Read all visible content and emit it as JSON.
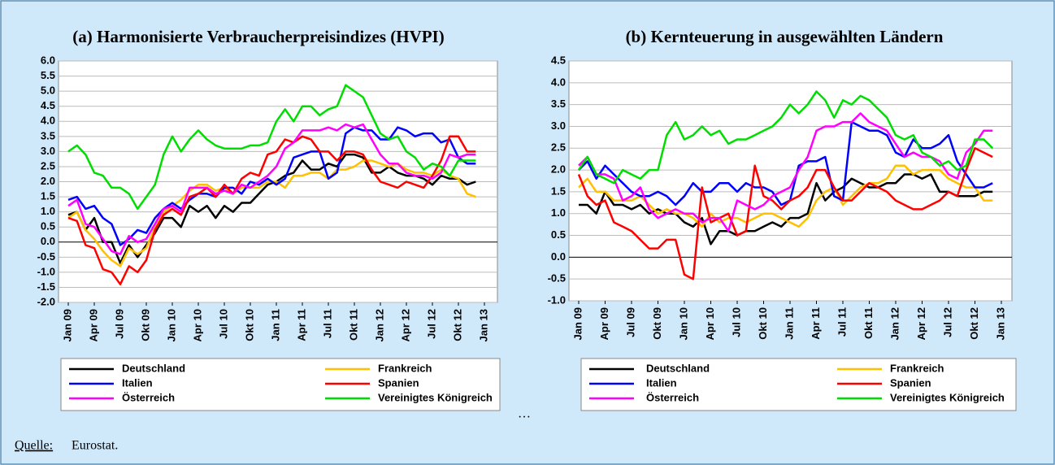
{
  "chart_data": [
    {
      "type": "line",
      "title": "(a) Harmonisierte Verbraucherpreisindizes (HVPI)",
      "categories": [
        "Jan 09",
        null,
        null,
        "Apr 09",
        null,
        null,
        "Jul 09",
        null,
        null,
        "Okt 09",
        null,
        null,
        "Jan 10",
        null,
        null,
        "Apr 10",
        null,
        null,
        "Jul 10",
        null,
        null,
        "Okt 10",
        null,
        null,
        "Jan 11",
        null,
        null,
        "Apr 11",
        null,
        null,
        "Jul 11",
        null,
        null,
        "Okt 11",
        null,
        null,
        "Jan 12",
        null,
        null,
        "Apr 12",
        null,
        null,
        "Jul 12",
        null,
        null,
        "Okt 12",
        null,
        null,
        "Jan 13"
      ],
      "ylim": [
        -2,
        6
      ],
      "yticks": [
        {
          "value": 6,
          "label": "6.0"
        },
        5.5,
        {
          "value": 5,
          "label": "5.0"
        },
        4.5,
        {
          "value": 4,
          "label": "4.0"
        },
        3.5,
        {
          "value": 3,
          "label": "3.0"
        },
        2.5,
        {
          "value": 2,
          "label": "2.0"
        },
        1.5,
        {
          "value": 1,
          "label": "1.0"
        },
        0.5,
        {
          "value": 0,
          "label": "0.0"
        },
        -0.5,
        {
          "value": -1,
          "label": "-1.0"
        },
        -1.5,
        {
          "value": -2,
          "label": "-2.0"
        }
      ],
      "grid": true,
      "series": [
        {
          "name": "Deutschland",
          "color": "#000000",
          "values": [
            0.9,
            1.0,
            0.4,
            0.8,
            0.0,
            0.0,
            -0.7,
            -0.1,
            -0.5,
            -0.1,
            0.3,
            0.8,
            0.8,
            0.5,
            1.2,
            1.0,
            1.2,
            0.8,
            1.2,
            1.0,
            1.3,
            1.3,
            1.6,
            1.9,
            2.0,
            2.2,
            2.3,
            2.7,
            2.4,
            2.4,
            2.6,
            2.5,
            2.9,
            2.9,
            2.8,
            2.3,
            2.3,
            2.5,
            2.3,
            2.2,
            2.2,
            2.1,
            1.9,
            2.2,
            2.1,
            2.1,
            1.9,
            2.0,
            null
          ]
        },
        {
          "name": "Frankreich",
          "color": "#ffc000",
          "values": [
            0.8,
            1.0,
            0.4,
            0.1,
            -0.3,
            -0.6,
            -0.8,
            -0.2,
            -0.4,
            -0.2,
            0.5,
            1.0,
            1.2,
            1.4,
            1.7,
            1.9,
            1.9,
            1.7,
            1.8,
            1.6,
            1.8,
            1.8,
            1.8,
            2.0,
            2.0,
            1.8,
            2.2,
            2.2,
            2.3,
            2.3,
            2.1,
            2.4,
            2.4,
            2.5,
            2.7,
            2.7,
            2.6,
            2.5,
            2.6,
            2.4,
            2.3,
            2.3,
            2.2,
            2.4,
            2.2,
            2.1,
            1.6,
            1.5,
            null
          ]
        },
        {
          "name": "Italien",
          "color": "#0000ff",
          "values": [
            1.4,
            1.5,
            1.1,
            1.2,
            0.8,
            0.6,
            -0.1,
            0.1,
            0.4,
            0.3,
            0.8,
            1.1,
            1.3,
            1.1,
            1.4,
            1.6,
            1.6,
            1.5,
            1.8,
            1.8,
            1.6,
            2.0,
            1.9,
            2.1,
            1.9,
            2.1,
            2.8,
            2.9,
            3.0,
            3.0,
            2.1,
            2.3,
            3.6,
            3.8,
            3.7,
            3.7,
            3.4,
            3.4,
            3.8,
            3.7,
            3.5,
            3.6,
            3.6,
            3.3,
            3.4,
            2.8,
            2.6,
            2.6,
            null
          ]
        },
        {
          "name": "Spanien",
          "color": "#ff0000",
          "values": [
            0.8,
            0.7,
            -0.1,
            -0.2,
            -0.9,
            -1.0,
            -1.4,
            -0.8,
            -1.0,
            -0.6,
            0.4,
            0.9,
            1.1,
            0.9,
            1.5,
            1.6,
            1.8,
            1.5,
            1.9,
            1.6,
            2.1,
            2.3,
            2.2,
            2.9,
            3.0,
            3.4,
            3.3,
            3.5,
            3.4,
            3.0,
            3.0,
            2.7,
            3.0,
            3.0,
            2.9,
            2.4,
            2.0,
            1.9,
            1.8,
            2.0,
            1.9,
            1.8,
            2.2,
            2.7,
            3.5,
            3.5,
            3.0,
            3.0,
            null
          ]
        },
        {
          "name": "Österreich",
          "color": "#ff00ff",
          "values": [
            1.2,
            1.4,
            0.6,
            0.5,
            0.1,
            -0.3,
            -0.4,
            0.2,
            0.0,
            0.1,
            0.6,
            1.1,
            1.2,
            1.0,
            1.8,
            1.8,
            1.8,
            1.6,
            1.7,
            1.6,
            1.9,
            1.8,
            2.0,
            2.2,
            2.5,
            3.1,
            3.3,
            3.7,
            3.7,
            3.7,
            3.8,
            3.7,
            3.9,
            3.8,
            3.9,
            3.4,
            2.9,
            2.6,
            2.6,
            2.3,
            2.2,
            2.2,
            2.1,
            2.3,
            2.9,
            2.8,
            2.9,
            2.9,
            null
          ]
        },
        {
          "name": "Vereinigtes Königreich",
          "color": "#00dd00",
          "values": [
            3.0,
            3.2,
            2.9,
            2.3,
            2.2,
            1.8,
            1.8,
            1.6,
            1.1,
            1.5,
            1.9,
            2.9,
            3.5,
            3.0,
            3.4,
            3.7,
            3.4,
            3.2,
            3.1,
            3.1,
            3.1,
            3.2,
            3.2,
            3.3,
            4.0,
            4.4,
            4.0,
            4.5,
            4.5,
            4.2,
            4.4,
            4.5,
            5.2,
            5.0,
            4.8,
            4.2,
            3.6,
            3.4,
            3.5,
            3.0,
            2.8,
            2.4,
            2.6,
            2.5,
            2.2,
            2.7,
            2.7,
            2.7,
            null
          ]
        }
      ]
    },
    {
      "type": "line",
      "title": "(b) Kernteuerung in ausgewählten Ländern",
      "categories": [
        "Jan 09",
        null,
        null,
        "Apr 09",
        null,
        null,
        "Jul 09",
        null,
        null,
        "Okt 09",
        null,
        null,
        "Jan 10",
        null,
        null,
        "Apr 10",
        null,
        null,
        "Jul 10",
        null,
        null,
        "Okt 10",
        null,
        null,
        "Jan 11",
        null,
        null,
        "Apr 11",
        null,
        null,
        "Jul 11",
        null,
        null,
        "Okt 11",
        null,
        null,
        "Jan 12",
        null,
        null,
        "Apr 12",
        null,
        null,
        "Jul 12",
        null,
        null,
        "Okt 12",
        null,
        null,
        "Jan 13"
      ],
      "ylim": [
        -1,
        4.5
      ],
      "yticks": [
        4.5,
        {
          "value": 4,
          "label": "4.0"
        },
        3.5,
        {
          "value": 3,
          "label": "3.0"
        },
        2.5,
        {
          "value": 2,
          "label": "2.0"
        },
        1.5,
        {
          "value": 1,
          "label": "1.0"
        },
        0.5,
        {
          "value": 0,
          "label": "0.0"
        },
        -0.5,
        {
          "value": -1,
          "label": "-1.0"
        }
      ],
      "grid": true,
      "series": [
        {
          "name": "Deutschland",
          "color": "#000000",
          "values": [
            1.2,
            1.2,
            1.0,
            1.5,
            1.2,
            1.2,
            1.1,
            1.2,
            1.0,
            1.1,
            1.0,
            1.0,
            0.8,
            0.7,
            0.9,
            0.3,
            0.6,
            0.6,
            0.5,
            0.6,
            0.6,
            0.7,
            0.8,
            0.7,
            0.9,
            0.9,
            1.0,
            1.7,
            1.3,
            1.5,
            1.6,
            1.8,
            1.7,
            1.6,
            1.6,
            1.7,
            1.7,
            1.9,
            1.9,
            1.8,
            1.9,
            1.5,
            1.5,
            1.4,
            1.4,
            1.4,
            1.5,
            1.5,
            null
          ]
        },
        {
          "name": "Frankreich",
          "color": "#ffc000",
          "values": [
            1.6,
            1.8,
            1.5,
            1.5,
            1.3,
            1.3,
            1.3,
            1.4,
            1.2,
            1.0,
            1.1,
            1.0,
            1.0,
            0.9,
            0.7,
            1.0,
            0.8,
            0.9,
            0.9,
            0.8,
            0.9,
            1.0,
            1.0,
            0.9,
            0.8,
            0.7,
            0.9,
            1.3,
            1.5,
            1.6,
            1.2,
            1.4,
            1.6,
            1.7,
            1.7,
            1.8,
            2.1,
            2.1,
            1.9,
            2.0,
            2.0,
            2.0,
            1.8,
            1.7,
            1.6,
            1.6,
            1.3,
            1.3,
            null
          ]
        },
        {
          "name": "Italien",
          "color": "#0000ff",
          "values": [
            2.0,
            2.2,
            1.8,
            2.1,
            1.9,
            1.7,
            1.5,
            1.4,
            1.4,
            1.5,
            1.4,
            1.2,
            1.4,
            1.7,
            1.5,
            1.5,
            1.7,
            1.7,
            1.5,
            1.7,
            1.6,
            1.6,
            1.5,
            1.2,
            1.3,
            2.1,
            2.2,
            2.2,
            2.3,
            1.4,
            1.3,
            3.1,
            3.0,
            2.9,
            2.9,
            2.8,
            2.4,
            2.3,
            2.7,
            2.5,
            2.5,
            2.6,
            2.8,
            2.2,
            1.9,
            1.6,
            1.6,
            1.7,
            null
          ]
        },
        {
          "name": "Spanien",
          "color": "#ff0000",
          "values": [
            1.9,
            1.4,
            1.2,
            1.3,
            0.8,
            0.7,
            0.6,
            0.4,
            0.2,
            0.2,
            0.4,
            0.4,
            -0.4,
            -0.5,
            1.6,
            0.8,
            0.9,
            1.0,
            0.5,
            0.6,
            2.1,
            1.4,
            1.3,
            1.1,
            1.3,
            1.4,
            1.6,
            2.0,
            2.0,
            1.6,
            1.3,
            1.3,
            1.5,
            1.7,
            1.6,
            1.5,
            1.3,
            1.2,
            1.1,
            1.1,
            1.2,
            1.3,
            1.5,
            1.4,
            2.0,
            2.5,
            2.4,
            2.3,
            null
          ]
        },
        {
          "name": "Österreich",
          "color": "#ff00ff",
          "values": [
            2.1,
            2.3,
            1.9,
            1.9,
            1.8,
            1.3,
            1.4,
            1.6,
            1.1,
            0.9,
            1.0,
            1.1,
            1.0,
            1.0,
            0.8,
            0.9,
            0.9,
            0.6,
            1.3,
            1.2,
            1.1,
            1.2,
            1.4,
            1.5,
            1.6,
            2.0,
            2.3,
            2.9,
            3.0,
            3.0,
            3.1,
            3.1,
            3.3,
            3.1,
            3.0,
            2.9,
            2.6,
            2.3,
            2.4,
            2.3,
            2.3,
            2.2,
            1.9,
            1.8,
            2.4,
            2.6,
            2.9,
            2.9,
            null
          ]
        },
        {
          "name": "Vereinigtes Königreich",
          "color": "#00dd00",
          "values": [
            2.0,
            2.3,
            1.9,
            1.8,
            1.7,
            2.0,
            1.9,
            1.8,
            2.0,
            2.0,
            2.8,
            3.1,
            2.7,
            2.8,
            3.0,
            2.8,
            2.9,
            2.6,
            2.7,
            2.7,
            2.8,
            2.9,
            3.0,
            3.2,
            3.5,
            3.3,
            3.5,
            3.8,
            3.6,
            3.2,
            3.6,
            3.5,
            3.7,
            3.6,
            3.4,
            3.2,
            2.8,
            2.7,
            2.8,
            2.4,
            2.3,
            2.1,
            2.2,
            2.0,
            2.1,
            2.7,
            2.7,
            2.5,
            null
          ]
        }
      ]
    }
  ],
  "ellipsis": "…",
  "source": {
    "label": "Quelle:",
    "text": "Eurostat."
  }
}
